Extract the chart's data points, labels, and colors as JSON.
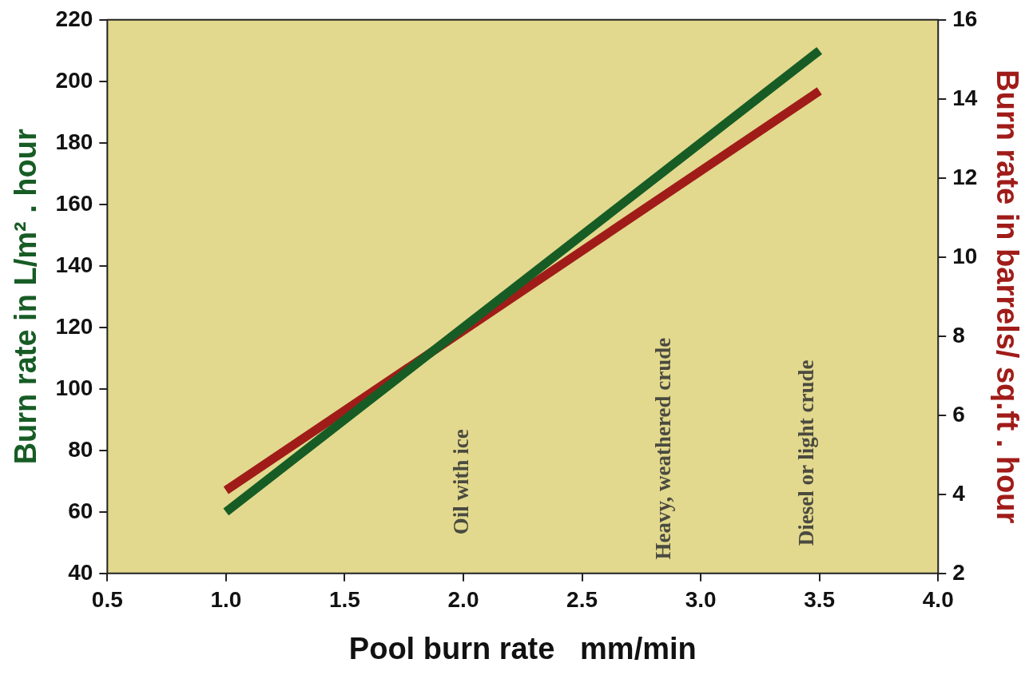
{
  "chart_data": {
    "type": "line",
    "xlabel": "Pool burn rate   mm/min",
    "ylabel": "Burn rate in L/m² . hour",
    "y2label": "Burn rate in barrels/ sq.ft . hour",
    "series": [
      {
        "color": "#175c25",
        "values": [
          60,
          210
        ]
      },
      {
        "color": "#a01c19",
        "values": [
          4.1,
          14.2
        ],
        "axis": "y2"
      }
    ],
    "x": [
      1.0,
      3.5
    ],
    "xlim": [
      0.5,
      4.0
    ],
    "xticks": [
      0.5,
      {
        "value": 1,
        "label": "1.0"
      },
      1.5,
      {
        "value": 2,
        "label": "2.0"
      },
      2.5,
      {
        "value": 3,
        "label": "3.0"
      },
      3.5,
      {
        "value": 4,
        "label": "4.0"
      }
    ],
    "ylim": [
      40,
      220
    ],
    "yticks": [
      40,
      60,
      80,
      100,
      120,
      140,
      160,
      180,
      200,
      220
    ],
    "y2lim": [
      2,
      16
    ],
    "y2ticks": [
      2,
      4,
      6,
      8,
      10,
      12,
      14,
      16
    ],
    "annotations": [
      "Oil with ice",
      "Heavy, weathered crude",
      "Diesel or light crude"
    ],
    "grid": false,
    "legend": false,
    "marker": "none",
    "line_style": "solid"
  }
}
